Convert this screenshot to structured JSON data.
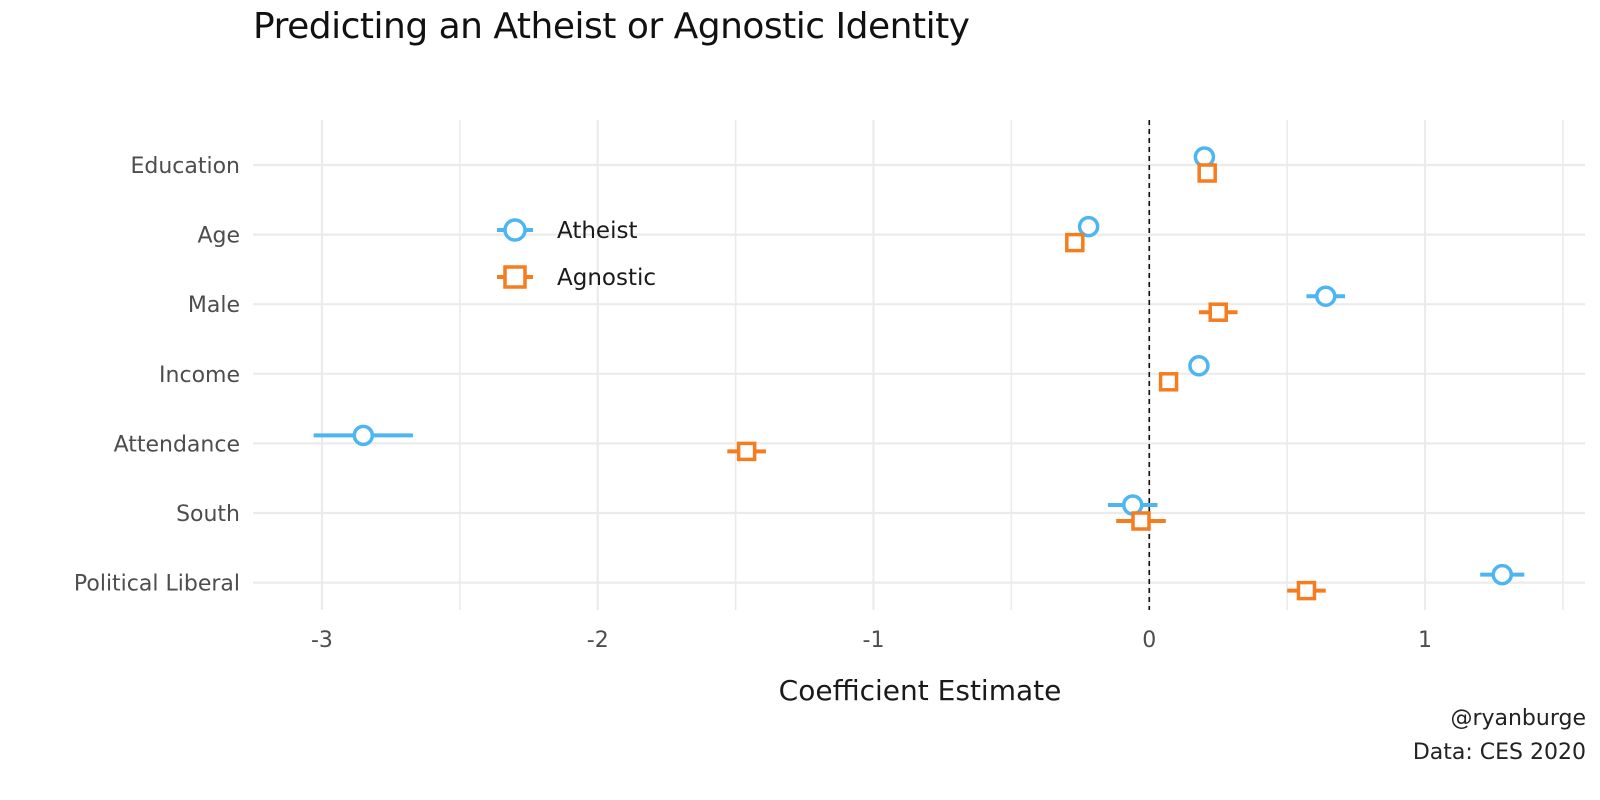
{
  "chart_data": {
    "type": "scatter",
    "subtype": "coefficient-plot",
    "title": "Predicting an Atheist or Agnostic Identity",
    "xlabel": "Coefficient Estimate",
    "ylabel": "",
    "xlim": [
      -3.25,
      1.58
    ],
    "x_ticks": [
      -3,
      -2,
      -1,
      0,
      1
    ],
    "x_tick_labels": [
      "-3",
      "-2",
      "-1",
      "0",
      "1"
    ],
    "reference_line": 0,
    "categories": [
      "Education",
      "Age",
      "Male",
      "Income",
      "Attendance",
      "South",
      "Political Liberal"
    ],
    "grid": true,
    "legend_position": "inside top-left",
    "series": [
      {
        "name": "Atheist",
        "marker": "circle",
        "color": "#4DB6F2",
        "estimates": [
          0.2,
          -0.22,
          0.64,
          0.18,
          -2.85,
          -0.06,
          1.28
        ],
        "ci_low": [
          0.18,
          -0.25,
          0.57,
          0.15,
          -3.03,
          -0.15,
          1.2
        ],
        "ci_high": [
          0.22,
          -0.19,
          0.71,
          0.21,
          -2.67,
          0.03,
          1.36
        ]
      },
      {
        "name": "Agnostic",
        "marker": "square",
        "color": "#F57C1F",
        "estimates": [
          0.21,
          -0.27,
          0.25,
          0.07,
          -1.46,
          -0.03,
          0.57
        ],
        "ci_low": [
          0.19,
          -0.29,
          0.18,
          0.05,
          -1.53,
          -0.12,
          0.5
        ],
        "ci_high": [
          0.23,
          -0.25,
          0.32,
          0.09,
          -1.39,
          0.06,
          0.64
        ]
      }
    ]
  },
  "caption": {
    "line1": "@ryanburge",
    "line2": "Data: CES 2020"
  },
  "colors": {
    "atheist": "#4DB6F2",
    "agnostic": "#F57C1F",
    "grid": "#EBEBEB",
    "reference_line": "#111111"
  }
}
